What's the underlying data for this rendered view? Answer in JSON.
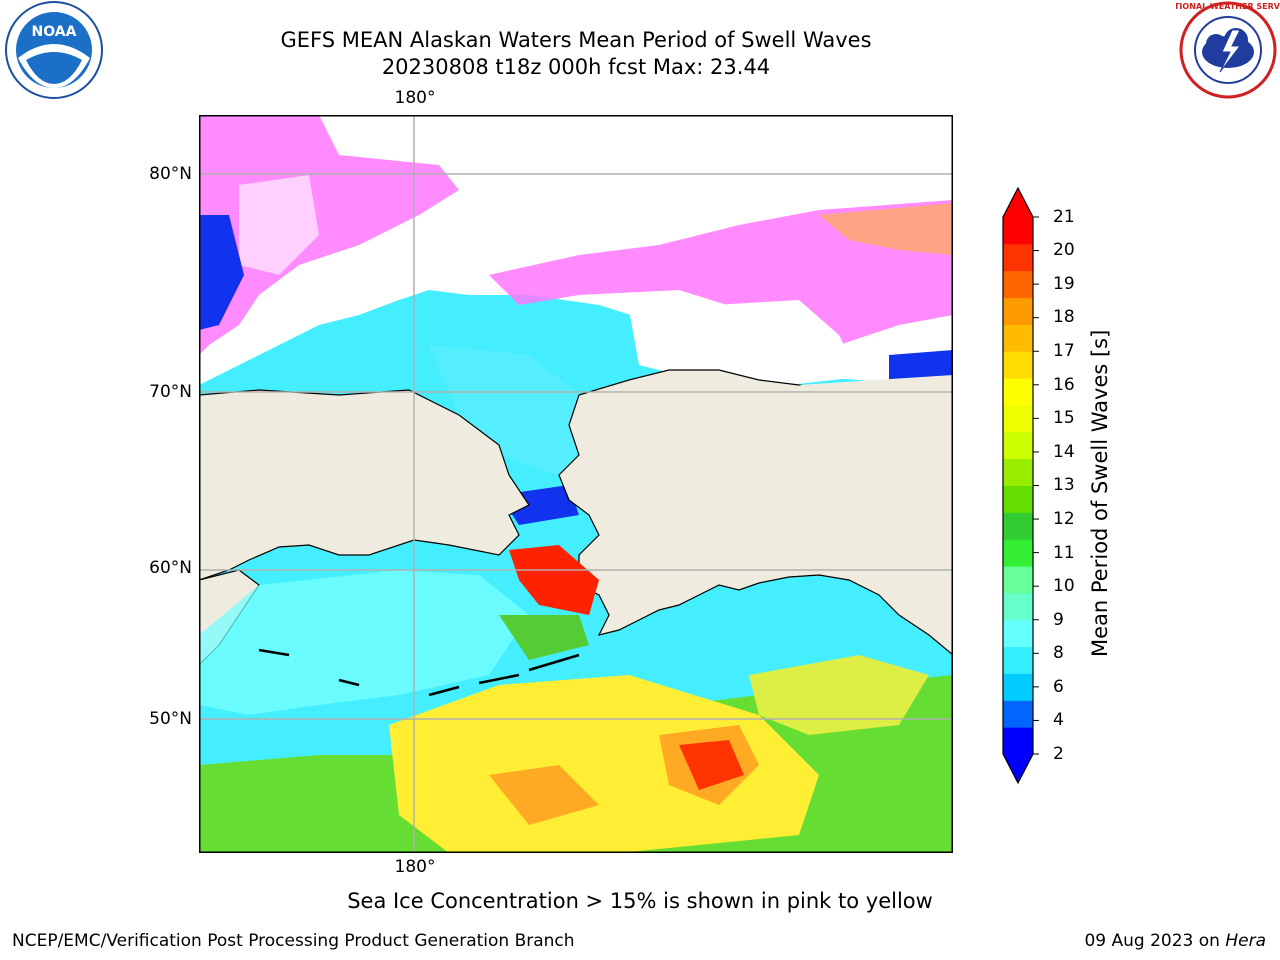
{
  "title": {
    "line1": "GEFS MEAN Alaskan Waters Mean Period of Swell Waves",
    "line2": "20230808 t18z 000h fcst   Max: 23.44"
  },
  "logos": {
    "left": "noaa-logo",
    "right": "national-weather-service-logo",
    "left_text": "NOAA",
    "right_text": "NATIONAL WEATHER SERVICE"
  },
  "map": {
    "lon_label_top": "180°",
    "lon_label_bottom": "180°",
    "lat_labels": [
      "80°N",
      "70°N",
      "60°N",
      "50°N"
    ],
    "land_color": "#efecdf",
    "ice_colors": [
      "#ff66ff",
      "#ff99ff",
      "#ffccff",
      "#ffff00"
    ]
  },
  "colorbar": {
    "label": "Mean Period of Swell Waves [s]",
    "ticks": [
      "21",
      "20",
      "19",
      "18",
      "17",
      "16",
      "15",
      "14",
      "13",
      "12",
      "11",
      "10",
      "9",
      "8",
      "6",
      "4",
      "2"
    ],
    "colors": [
      "#0000ff",
      "#0066ff",
      "#00ccff",
      "#33eeff",
      "#66ffff",
      "#66ffcc",
      "#66ff99",
      "#33ee33",
      "#33cc33",
      "#66dd00",
      "#99ee00",
      "#ccff00",
      "#eeff00",
      "#ffff00",
      "#ffdd00",
      "#ffbb00",
      "#ff9900",
      "#ff6600",
      "#ff3300",
      "#ff0000"
    ]
  },
  "footnote": "Sea Ice Concentration > 15% is shown in pink to yellow",
  "footer": {
    "org": "NCEP/EMC/Verification Post Processing Product Generation Branch",
    "date": "09 Aug 2023 on ",
    "machine": "Hera"
  }
}
